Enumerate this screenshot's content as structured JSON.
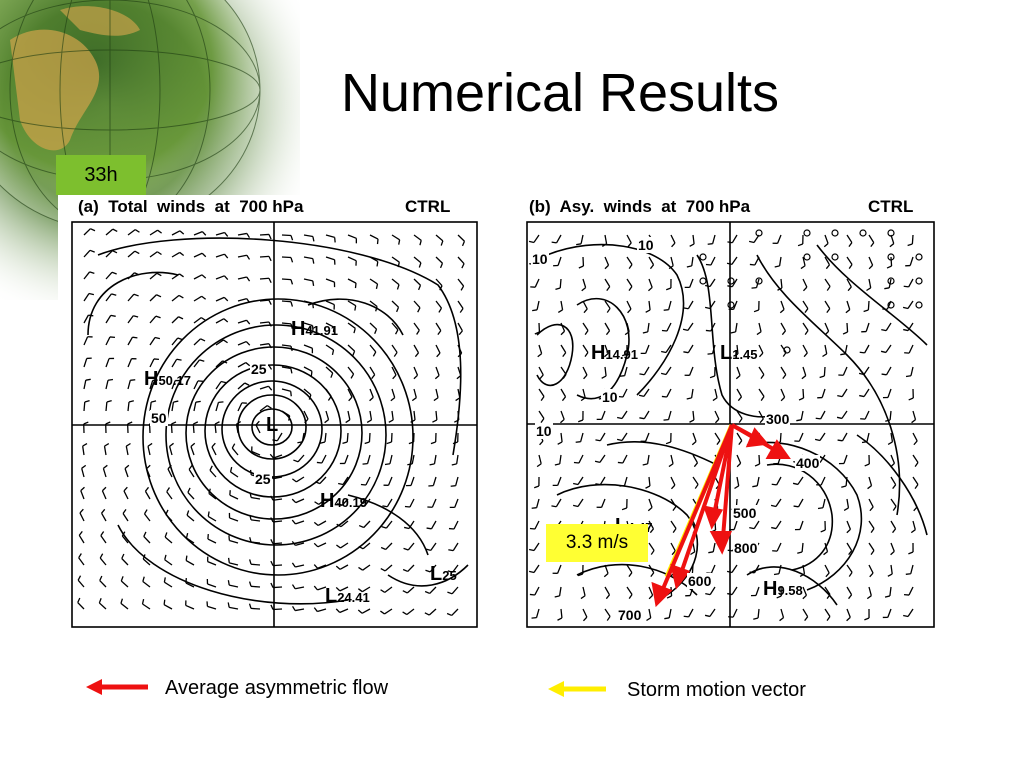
{
  "slide": {
    "title": "Numerical Results",
    "time_tag": "33h"
  },
  "panel_a": {
    "title": "(a)  Total  winds  at  700 hPa",
    "run": "CTRL",
    "labels": {
      "h1_letter": "H",
      "h1_value": "41.91",
      "h2_letter": "H",
      "h2_value": "50.17",
      "h3_letter": "H",
      "h3_value": "40.19",
      "center_letter": "L",
      "l2_letter": "L",
      "l2_value": "24.41",
      "l3_letter": "L",
      "l3_value": "25",
      "contour_25_top": "25",
      "contour_25_bottom": "25",
      "contour_50": "50"
    }
  },
  "panel_b": {
    "title": "(b)  Asy.  winds  at  700 hPa",
    "run": "CTRL",
    "labels": {
      "h1_letter": "H",
      "h1_value": "14.91",
      "l1_letter": "L",
      "l1_value": "1.45",
      "l2_letter": "L",
      "l2_value": "4.47",
      "h2_letter": "H",
      "h2_value": "9.58",
      "c10_a": "10",
      "c10_b": "10",
      "c10_c": "10",
      "c10_d": "10"
    },
    "levels": [
      "300",
      "400",
      "500",
      "600",
      "700",
      "800"
    ],
    "speed_box": "3.3 m/s"
  },
  "legend": {
    "asym_label": "Average asymmetric flow",
    "storm_label": "Storm motion vector",
    "asym_color": "#ee1111",
    "storm_color": "#ffee00"
  }
}
